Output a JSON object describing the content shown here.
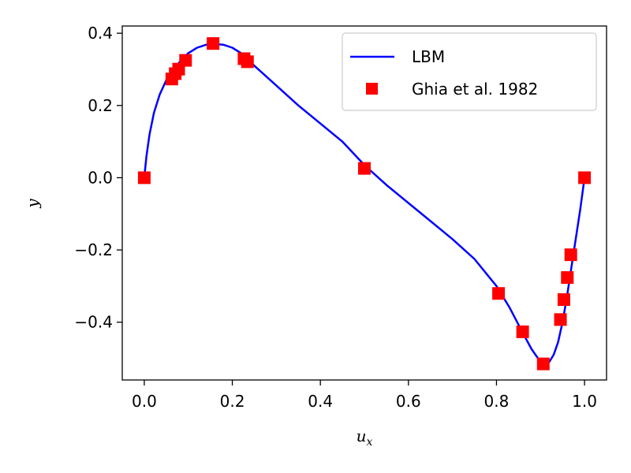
{
  "chart_data": {
    "type": "line",
    "xlabel": "u",
    "xlabel_sub": "x",
    "ylabel": "y",
    "xlim": [
      -0.05,
      1.05
    ],
    "ylim": [
      -0.56,
      0.42
    ],
    "xticks": [
      0.0,
      0.2,
      0.4,
      0.6,
      0.8,
      1.0
    ],
    "xtick_labels": [
      "0.0",
      "0.2",
      "0.4",
      "0.6",
      "0.8",
      "1.0"
    ],
    "yticks": [
      0.4,
      0.2,
      0.0,
      -0.2,
      -0.4
    ],
    "ytick_labels": [
      "0.4",
      "0.2",
      "0.0",
      "−0.2",
      "−0.4"
    ],
    "grid": false,
    "legend_position": "upper right",
    "legend": [
      "LBM",
      "Ghia et al. 1982"
    ],
    "series": [
      {
        "name": "LBM",
        "style": "line",
        "color": "#0000ff",
        "x": [
          0.0,
          0.005,
          0.012,
          0.022,
          0.035,
          0.05,
          0.065,
          0.08,
          0.1,
          0.12,
          0.14,
          0.16,
          0.18,
          0.2,
          0.22,
          0.25,
          0.3,
          0.35,
          0.4,
          0.45,
          0.5,
          0.55,
          0.6,
          0.65,
          0.7,
          0.75,
          0.8,
          0.83,
          0.86,
          0.88,
          0.9,
          0.91,
          0.92,
          0.93,
          0.94,
          0.95,
          0.96,
          0.97,
          0.98,
          0.99,
          1.0
        ],
        "y": [
          0.0,
          0.06,
          0.12,
          0.18,
          0.23,
          0.27,
          0.3,
          0.32,
          0.345,
          0.36,
          0.368,
          0.37,
          0.368,
          0.36,
          0.345,
          0.31,
          0.255,
          0.2,
          0.15,
          0.1,
          0.035,
          -0.02,
          -0.07,
          -0.12,
          -0.17,
          -0.225,
          -0.3,
          -0.36,
          -0.43,
          -0.475,
          -0.51,
          -0.515,
          -0.51,
          -0.49,
          -0.455,
          -0.4,
          -0.33,
          -0.25,
          -0.17,
          -0.09,
          0.0
        ]
      },
      {
        "name": "Ghia et al. 1982",
        "style": "marker",
        "color": "#ff0000",
        "x": [
          0.0,
          0.0625,
          0.0703,
          0.0781,
          0.0938,
          0.1563,
          0.2266,
          0.2344,
          0.5,
          0.8047,
          0.8594,
          0.9063,
          0.9453,
          0.9531,
          0.9609,
          0.9688,
          1.0
        ],
        "y": [
          0.0,
          0.2733,
          0.2881,
          0.3006,
          0.3249,
          0.3716,
          0.3296,
          0.3211,
          0.0258,
          -0.3204,
          -0.4266,
          -0.5155,
          -0.3927,
          -0.3374,
          -0.2764,
          -0.2133,
          0.0
        ]
      }
    ]
  }
}
